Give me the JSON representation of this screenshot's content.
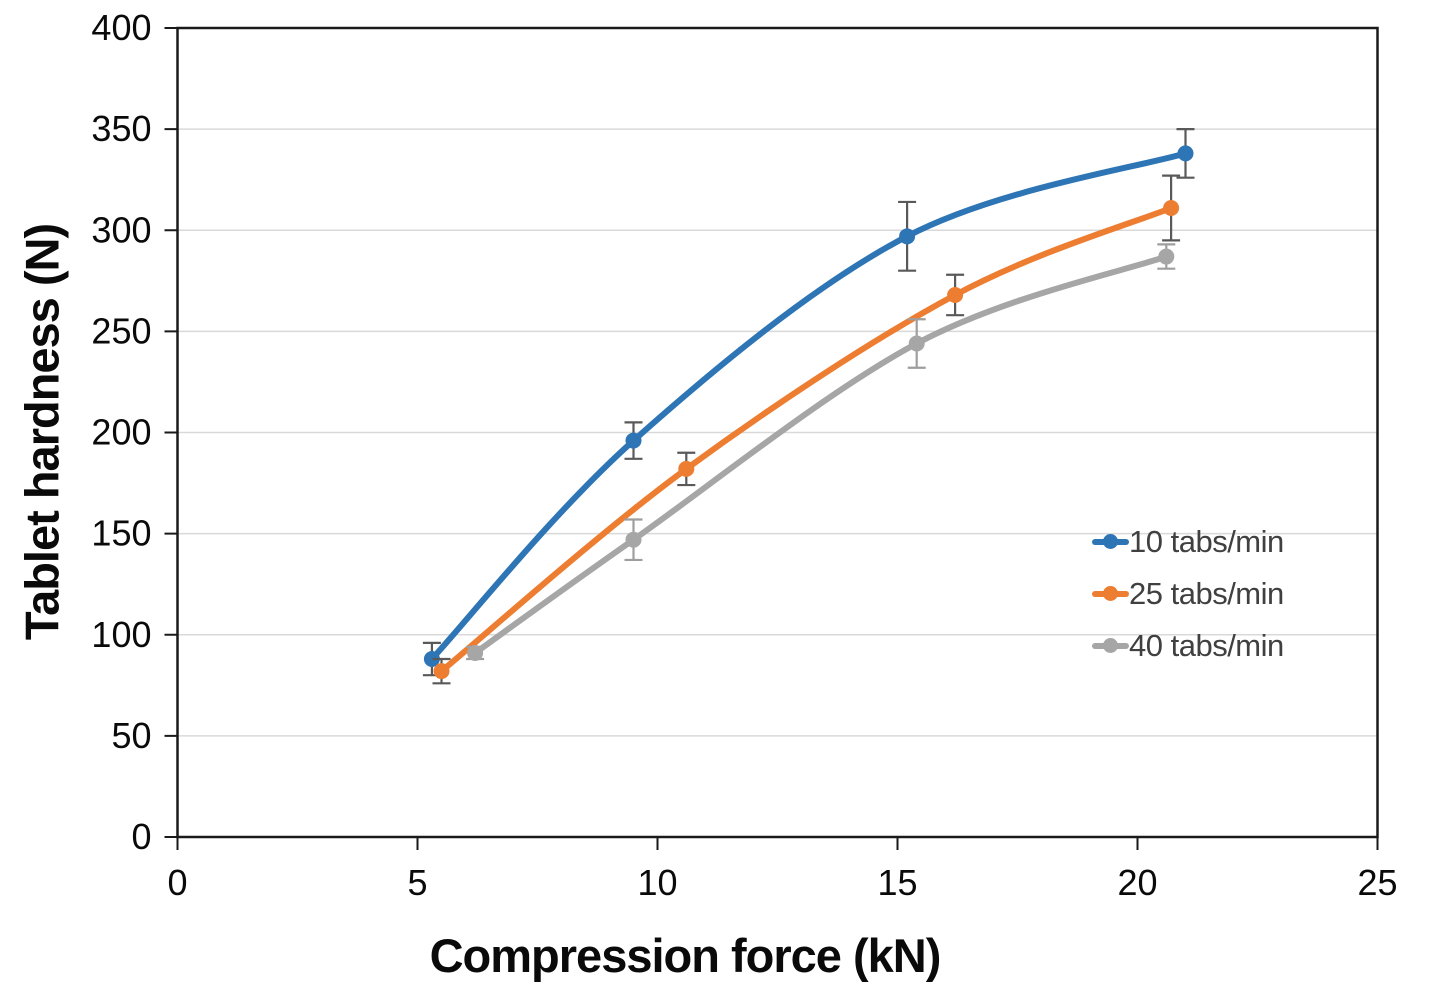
{
  "chart_data": {
    "type": "line",
    "title": "",
    "xlabel": "Compression force (kN)",
    "ylabel": "Tablet hardness (N)",
    "xlim": [
      0,
      25
    ],
    "ylim": [
      0,
      400
    ],
    "xticks": [
      0,
      5,
      10,
      15,
      20,
      25
    ],
    "yticks": [
      0,
      50,
      100,
      150,
      200,
      250,
      300,
      350,
      400
    ],
    "grid": "horizontal",
    "smoothed_lines": true,
    "legend_position": "inside-right",
    "gridline_color": "#d9d9d9",
    "axis_color": "#1a1a1a",
    "tick_label_color": "#0a0a0a",
    "legend_text_color": "#404040",
    "series": [
      {
        "name": "10 tabs/min",
        "color": "#2E75B6",
        "error_color": "#595959",
        "x": [
          5.3,
          9.5,
          15.2,
          21.0
        ],
        "y": [
          88,
          196,
          297,
          338
        ],
        "yerr": [
          8,
          9,
          17,
          12
        ]
      },
      {
        "name": "25 tabs/min",
        "color": "#ED7D31",
        "error_color": "#595959",
        "x": [
          5.5,
          10.6,
          16.2,
          20.7
        ],
        "y": [
          82,
          182,
          268,
          311
        ],
        "yerr": [
          6,
          8,
          10,
          16
        ]
      },
      {
        "name": "40 tabs/min",
        "color": "#A6A6A6",
        "error_color": "#9E9E9E",
        "x": [
          6.2,
          9.5,
          15.4,
          20.6
        ],
        "y": [
          91,
          147,
          244,
          287
        ],
        "yerr": [
          3,
          10,
          12,
          6
        ]
      }
    ]
  }
}
